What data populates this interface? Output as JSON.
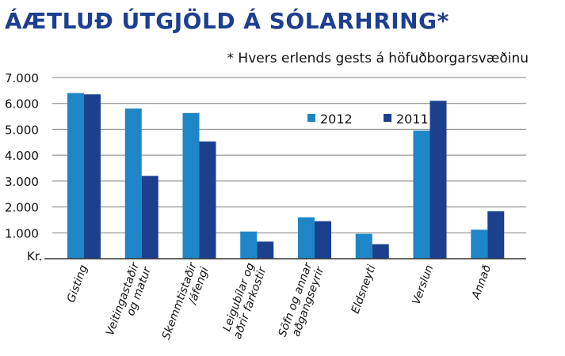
{
  "title": "ÁÆTLUÐ ÚTGJÖLD Á SÓLARHRING*",
  "subtitle": "* Hvers erlends gests á höfuðborgarsvæðinu",
  "chart_data": {
    "type": "bar",
    "title": "ÁÆTLUÐ ÚTGJÖLD Á SÓLARHRING*",
    "subtitle": "* Hvers erlends gests á höfuðborgarsvæðinu",
    "categories": [
      "Gisting",
      "Veitingastaðir og matur",
      "Skemmtistaðir /áfengi",
      "Leigubílar og aðrir farkostir",
      "Söfn og annar aðgangseyrir",
      "Eldsneyti",
      "Verslun",
      "Annað"
    ],
    "category_lines": [
      [
        "Gisting"
      ],
      [
        "Veitingastaðir",
        "og matur"
      ],
      [
        "Skemmtistaðir",
        "/áfengi"
      ],
      [
        "Leigubílar og",
        "aðrir farkostir"
      ],
      [
        "Söfn og annar",
        "aðgangseyrir"
      ],
      [
        "Eldsneyti"
      ],
      [
        "Verslun"
      ],
      [
        "Annað"
      ]
    ],
    "series": [
      {
        "name": "2012",
        "color": "#1e86c6",
        "values": [
          6400,
          5800,
          5630,
          1050,
          1600,
          960,
          4950,
          1120
        ]
      },
      {
        "name": "2011",
        "color": "#1c3f8e",
        "values": [
          6350,
          3200,
          4530,
          660,
          1450,
          560,
          6100,
          1830
        ]
      }
    ],
    "ylim": [
      0,
      7000
    ],
    "yticks": [
      {
        "value": 7000,
        "label": "7.000"
      },
      {
        "value": 6000,
        "label": "6.000"
      },
      {
        "value": 5000,
        "label": "5.000"
      },
      {
        "value": 4000,
        "label": "4.000"
      },
      {
        "value": 3000,
        "label": "3.000"
      },
      {
        "value": 2000,
        "label": "2.000"
      },
      {
        "value": 1000,
        "label": "1.000"
      }
    ],
    "ylabel": "Kr.",
    "xlabel": "",
    "grid": true,
    "legend_position": "top-right",
    "colors": {
      "grid": "#7f7f7f",
      "axis": "#333333",
      "text": "#111111"
    }
  }
}
